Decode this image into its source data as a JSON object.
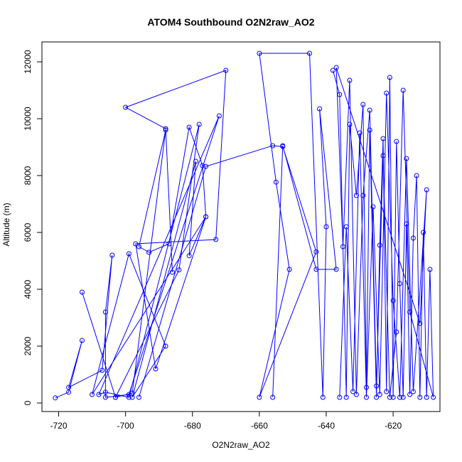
{
  "chart_data": {
    "type": "line",
    "title": "ATOM4 Southbound O2N2raw_AO2",
    "xlabel": "O2N2raw_AO2",
    "ylabel": "Altitude (m)",
    "xlim": [
      -725,
      -606
    ],
    "ylim": [
      -300,
      12700
    ],
    "x_ticks": [
      -720,
      -700,
      -680,
      -660,
      -640,
      -620
    ],
    "x_tick_labels": [
      "-720",
      "-700",
      "-680",
      "-660",
      "-640",
      "-620"
    ],
    "y_ticks": [
      0,
      2000,
      4000,
      6000,
      8000,
      10000,
      12000
    ],
    "y_tick_labels": [
      "0",
      "2000",
      "4000",
      "6000",
      "8000",
      "10000",
      "12000"
    ],
    "grid": false,
    "color": "#0000ff",
    "series": [
      {
        "x": [
          -721,
          -717,
          -713,
          -717,
          -707,
          -704,
          -706,
          -706,
          -699,
          -672,
          -708,
          -706,
          -699,
          -678,
          -684,
          -703,
          -713,
          -703,
          -698,
          -688,
          -696,
          -693,
          -687,
          -681,
          -677,
          -676,
          -681,
          -679,
          -698,
          -688,
          -699,
          -710,
          -676,
          -691,
          -697,
          -673,
          -670,
          -700,
          -688,
          -686
        ],
        "y": [
          180,
          380,
          2200,
          550,
          1150,
          5200,
          3200,
          200,
          300,
          10100,
          300,
          380,
          200,
          9800,
          4680,
          200,
          3900,
          200,
          350,
          9600,
          5500,
          5300,
          5600,
          9700,
          8350,
          6550,
          5180,
          8500,
          200,
          2000,
          5250,
          300,
          6550,
          1200,
          5600,
          5750,
          11700,
          10400,
          9650,
          4600
        ]
      },
      {
        "x": [
          -696,
          -676,
          -656,
          -653,
          -643,
          -660,
          -651,
          -655,
          -660,
          -645,
          -641,
          -640,
          -642,
          -637,
          -643,
          -653,
          -656
        ],
        "y": [
          200,
          8320,
          9050,
          9020,
          5320,
          200,
          4700,
          7770,
          12300,
          12300,
          200,
          6200,
          10350,
          4700,
          4700,
          9050,
          200
        ]
      },
      {
        "x": [
          -638,
          -636,
          -634,
          -633,
          -631,
          -629,
          -628,
          -627,
          -625,
          -624,
          -623,
          -622,
          -621,
          -620,
          -619,
          -618,
          -617,
          -616,
          -615,
          -614,
          -613,
          -612,
          -611,
          -610,
          -609,
          -608,
          -615,
          -617,
          -619,
          -621,
          -623,
          -625,
          -627,
          -629,
          -631,
          -633,
          -635,
          -637,
          -612,
          -610,
          -614,
          -616,
          -618,
          -620,
          -622,
          -624,
          -626,
          -628,
          -630,
          -632,
          -634,
          -636
        ],
        "y": [
          11700,
          10850,
          200,
          9800,
          7300,
          10500,
          550,
          9600,
          200,
          5550,
          9300,
          400,
          11450,
          200,
          9200,
          4200,
          200,
          6300,
          300,
          5800,
          8000,
          200,
          6000,
          200,
          4700,
          200,
          3200,
          11000,
          2500,
          200,
          8700,
          600,
          10300,
          7300,
          300,
          11350,
          5500,
          11800,
          2800,
          7500,
          400,
          8600,
          200,
          3600,
          10900,
          300,
          6900,
          200,
          9500,
          400,
          6200,
          200
        ]
      }
    ]
  }
}
